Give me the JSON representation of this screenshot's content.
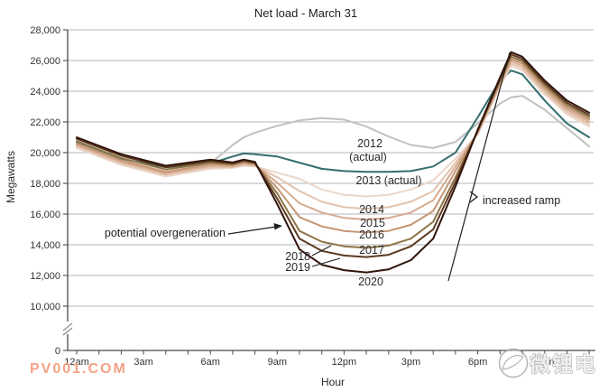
{
  "title": "Net load - March 31",
  "y_axis": {
    "label": "Megawatts"
  },
  "x_axis": {
    "label": "Hour"
  },
  "annotations": {
    "overgeneration": "potential overgeneration",
    "ramp": "increased ramp"
  },
  "watermarks": {
    "bottom_left": "PV001.COM",
    "bottom_right": "微锂电"
  },
  "chart_data": {
    "type": "line",
    "title": "Net load - March 31",
    "xlabel": "Hour",
    "ylabel": "Megawatts",
    "grid": "horizontal",
    "ylim": [
      0,
      28000
    ],
    "y_ticks": [
      0,
      10000,
      12000,
      14000,
      16000,
      18000,
      20000,
      22000,
      24000,
      26000,
      28000
    ],
    "y_axis_break_between": [
      0,
      10000
    ],
    "x_hours": [
      0,
      2,
      4,
      6,
      7,
      7.5,
      8,
      9,
      10,
      11,
      12,
      13,
      14,
      15,
      16,
      17,
      18,
      19,
      19.5,
      20,
      21,
      22,
      23
    ],
    "x_tick_labels": [
      {
        "hour": 0,
        "label": "12am"
      },
      {
        "hour": 3,
        "label": "3am"
      },
      {
        "hour": 6,
        "label": "6am"
      },
      {
        "hour": 9,
        "label": "9am"
      },
      {
        "hour": 12,
        "label": "12pm"
      },
      {
        "hour": 15,
        "label": "3pm"
      },
      {
        "hour": 18,
        "label": "6pm"
      },
      {
        "hour": 21,
        "label": "9pm"
      }
    ],
    "series": [
      {
        "name": "2012 (actual)",
        "label_lines": [
          "2012",
          "(actual)"
        ],
        "color": "#bfc2c0",
        "values": [
          20400,
          19300,
          18650,
          19300,
          20500,
          21000,
          21300,
          21750,
          22100,
          22250,
          22150,
          21700,
          21050,
          20500,
          20300,
          20700,
          21900,
          23200,
          23600,
          23700,
          22800,
          21600,
          20400
        ]
      },
      {
        "name": "2013 (actual)",
        "label_lines": [
          "2013 (actual)"
        ],
        "color": "#346d6e",
        "values": [
          20700,
          19600,
          19050,
          19300,
          19750,
          19950,
          19900,
          19750,
          19350,
          18950,
          18800,
          18750,
          18750,
          18800,
          19100,
          20000,
          22300,
          24700,
          25350,
          25100,
          23400,
          21900,
          21000
        ]
      },
      {
        "name": "2014",
        "label_lines": [
          "2014"
        ],
        "color": "#ecd7ca",
        "values": [
          20300,
          19200,
          18450,
          18950,
          19000,
          19150,
          19100,
          18700,
          18300,
          17600,
          17250,
          17150,
          17250,
          17600,
          18200,
          19600,
          21200,
          24300,
          25650,
          25350,
          23800,
          22500,
          21700
        ]
      },
      {
        "name": "2015",
        "label_lines": [
          "2015"
        ],
        "color": "#e2c4ae",
        "values": [
          20400,
          19300,
          18550,
          19050,
          19060,
          19220,
          19150,
          18400,
          17500,
          16800,
          16450,
          16350,
          16450,
          16800,
          17500,
          19350,
          21250,
          24400,
          25800,
          25500,
          23950,
          22650,
          21850
        ]
      },
      {
        "name": "2016",
        "label_lines": [
          "2016"
        ],
        "color": "#d7ab90",
        "values": [
          20500,
          19400,
          18650,
          19150,
          19120,
          19290,
          19200,
          18050,
          16700,
          16100,
          15750,
          15650,
          15750,
          16100,
          16900,
          19100,
          21300,
          24500,
          25950,
          25650,
          24100,
          22800,
          22000
        ]
      },
      {
        "name": "2017",
        "label_lines": [
          "2017"
        ],
        "color": "#c59676",
        "values": [
          20600,
          19500,
          18750,
          19250,
          19180,
          19360,
          19250,
          17700,
          15800,
          15200,
          14900,
          14800,
          14900,
          15300,
          16200,
          18800,
          21350,
          24600,
          26100,
          25800,
          24250,
          22950,
          22150
        ]
      },
      {
        "name": "2018",
        "label_lines": [
          "2018"
        ],
        "color": "#8e7547",
        "values": [
          20750,
          19650,
          18900,
          19350,
          19240,
          19430,
          19300,
          17350,
          14900,
          14200,
          13900,
          13800,
          13950,
          14400,
          15500,
          18400,
          21400,
          24700,
          26250,
          25950,
          24400,
          23100,
          22300
        ]
      },
      {
        "name": "2019",
        "label_lines": [
          "2019"
        ],
        "color": "#5e3a20",
        "values": [
          20900,
          19800,
          19050,
          19450,
          19300,
          19500,
          19350,
          17000,
          14400,
          13600,
          13300,
          13200,
          13350,
          13900,
          15000,
          18100,
          21450,
          24800,
          26400,
          26100,
          24550,
          23250,
          22450
        ]
      },
      {
        "name": "2020",
        "label_lines": [
          "2020"
        ],
        "color": "#30140b",
        "values": [
          21000,
          19900,
          19150,
          19550,
          19360,
          19550,
          19400,
          16650,
          13700,
          12700,
          12350,
          12200,
          12400,
          13000,
          14400,
          17800,
          21500,
          24900,
          26550,
          26250,
          24700,
          23400,
          22600
        ]
      }
    ]
  }
}
